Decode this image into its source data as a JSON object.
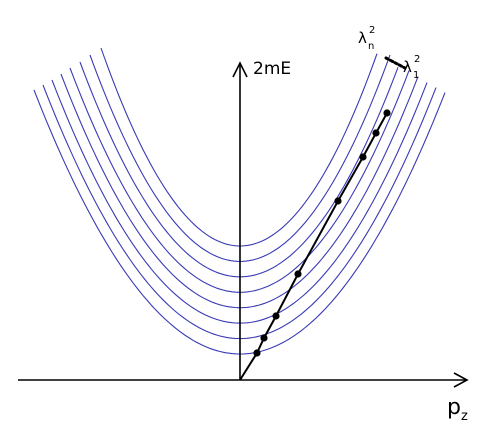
{
  "diagram": {
    "y_axis_label": "2mE",
    "x_axis_label_main": "p",
    "x_axis_label_sub": "z",
    "lambda_top": {
      "symbol": "λ",
      "subscript": "n",
      "superscript": "2"
    },
    "lambda_bottom": {
      "symbol": "λ",
      "subscript": "1",
      "superscript": "2"
    },
    "parabola_count": 8,
    "marked_point_count": 8,
    "colors": {
      "parabolas": "#3a3ab5",
      "axes": "#000000",
      "dispersion_line": "#000000",
      "points": "#000000"
    }
  }
}
